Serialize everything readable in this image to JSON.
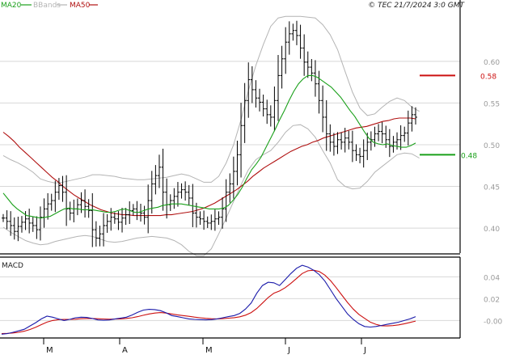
{
  "header": {
    "legend": [
      {
        "label": "MA20",
        "color": "#1aa01a"
      },
      {
        "label": "BBands",
        "color": "#b4b4b4"
      },
      {
        "label": "MA50",
        "color": "#b01010"
      }
    ],
    "copyright": "© TEC 21/7/2024 3:0 GMT"
  },
  "colors": {
    "price": "#000000",
    "ma20": "#1aa01a",
    "ma50": "#b01010",
    "bbands": "#b4b4b4",
    "macd": "#1a1aaa",
    "signal": "#cc1010",
    "resistance": "#cc1010",
    "support": "#1aa01a",
    "grid": "#d8d8d8",
    "axis_text": "#9a9a9a"
  },
  "chart_data": [
    {
      "type": "ohlc",
      "panel": "price",
      "y_ticks": [
        {
          "label": "0.40",
          "value": 0.4
        },
        {
          "label": "0.45",
          "value": 0.45
        },
        {
          "label": "0.50",
          "value": 0.5
        },
        {
          "label": "0.55",
          "value": 0.55
        },
        {
          "label": "0.60",
          "value": 0.6
        }
      ],
      "ylim": [
        0.37,
        0.66
      ],
      "x_ticks": [
        "M",
        "A",
        "M",
        "J",
        "J"
      ],
      "levels": [
        {
          "name": "resistance",
          "label": "0.58",
          "value": 0.583
        },
        {
          "name": "support",
          "label": "0.48",
          "value": 0.488
        }
      ],
      "price": [
        0.412,
        0.408,
        0.403,
        0.396,
        0.402,
        0.407,
        0.411,
        0.406,
        0.403,
        0.398,
        0.413,
        0.423,
        0.429,
        0.433,
        0.443,
        0.451,
        0.443,
        0.423,
        0.418,
        0.423,
        0.428,
        0.433,
        0.426,
        0.421,
        0.398,
        0.388,
        0.393,
        0.403,
        0.408,
        0.413,
        0.411,
        0.407,
        0.412,
        0.416,
        0.421,
        0.423,
        0.419,
        0.418,
        0.413,
        0.433,
        0.453,
        0.463,
        0.473,
        0.443,
        0.428,
        0.433,
        0.438,
        0.443,
        0.446,
        0.443,
        0.436,
        0.418,
        0.413,
        0.411,
        0.408,
        0.406,
        0.408,
        0.411,
        0.413,
        0.423,
        0.443,
        0.453,
        0.468,
        0.488,
        0.523,
        0.553,
        0.578,
        0.566,
        0.556,
        0.551,
        0.543,
        0.536,
        0.533,
        0.553,
        0.583,
        0.603,
        0.623,
        0.633,
        0.637,
        0.631,
        0.616,
        0.599,
        0.593,
        0.586,
        0.573,
        0.553,
        0.533,
        0.513,
        0.503,
        0.498,
        0.506,
        0.503,
        0.508,
        0.503,
        0.493,
        0.488,
        0.486,
        0.493,
        0.503,
        0.506,
        0.513,
        0.516,
        0.513,
        0.506,
        0.498,
        0.503,
        0.506,
        0.511,
        0.514,
        0.526,
        0.536,
        0.533
      ],
      "ma20": [
        0.442,
        0.435,
        0.428,
        0.423,
        0.419,
        0.415,
        0.414,
        0.413,
        0.412,
        0.413,
        0.414,
        0.417,
        0.42,
        0.423,
        0.424,
        0.423,
        0.423,
        0.422,
        0.422,
        0.422,
        0.421,
        0.42,
        0.419,
        0.419,
        0.42,
        0.422,
        0.423,
        0.421,
        0.419,
        0.419,
        0.421,
        0.423,
        0.424,
        0.425,
        0.427,
        0.428,
        0.429,
        0.429,
        0.429,
        0.428,
        0.427,
        0.426,
        0.425,
        0.424,
        0.423,
        0.423,
        0.423,
        0.424,
        0.427,
        0.433,
        0.44,
        0.449,
        0.46,
        0.47,
        0.477,
        0.485,
        0.496,
        0.507,
        0.518,
        0.53,
        0.541,
        0.553,
        0.564,
        0.573,
        0.579,
        0.583,
        0.583,
        0.581,
        0.577,
        0.573,
        0.569,
        0.563,
        0.557,
        0.549,
        0.541,
        0.534,
        0.525,
        0.516,
        0.508,
        0.503,
        0.501,
        0.5,
        0.501,
        0.499,
        0.498,
        0.497,
        0.497,
        0.499,
        0.502
      ],
      "ma20_start": 0,
      "ma50": [
        0.515,
        0.51,
        0.504,
        0.497,
        0.491,
        0.485,
        0.479,
        0.473,
        0.467,
        0.461,
        0.456,
        0.45,
        0.445,
        0.44,
        0.436,
        0.432,
        0.428,
        0.425,
        0.422,
        0.42,
        0.418,
        0.417,
        0.416,
        0.416,
        0.415,
        0.415,
        0.415,
        0.415,
        0.415,
        0.415,
        0.416,
        0.416,
        0.417,
        0.418,
        0.419,
        0.42,
        0.422,
        0.424,
        0.427,
        0.43,
        0.434,
        0.438,
        0.442,
        0.446,
        0.451,
        0.456,
        0.462,
        0.467,
        0.472,
        0.476,
        0.48,
        0.484,
        0.488,
        0.492,
        0.495,
        0.498,
        0.5,
        0.503,
        0.505,
        0.508,
        0.51,
        0.512,
        0.514,
        0.516,
        0.518,
        0.52,
        0.521,
        0.522,
        0.524,
        0.526,
        0.528,
        0.529,
        0.531,
        0.532,
        0.532,
        0.532,
        0.531
      ],
      "bb_upper": [
        0.487,
        0.482,
        0.478,
        0.473,
        0.467,
        0.459,
        0.456,
        0.454,
        0.455,
        0.457,
        0.459,
        0.461,
        0.464,
        0.464,
        0.463,
        0.462,
        0.46,
        0.459,
        0.458,
        0.458,
        0.459,
        0.46,
        0.461,
        0.463,
        0.465,
        0.463,
        0.459,
        0.455,
        0.455,
        0.462,
        0.478,
        0.5,
        0.53,
        0.565,
        0.595,
        0.62,
        0.642,
        0.652,
        0.654,
        0.654,
        0.654,
        0.653,
        0.652,
        0.644,
        0.632,
        0.614,
        0.588,
        0.563,
        0.544,
        0.535,
        0.537,
        0.545,
        0.552,
        0.556,
        0.553,
        0.545,
        0.54
      ],
      "bb_lower": [
        0.401,
        0.395,
        0.39,
        0.385,
        0.382,
        0.38,
        0.381,
        0.384,
        0.386,
        0.388,
        0.39,
        0.391,
        0.39,
        0.387,
        0.384,
        0.383,
        0.384,
        0.386,
        0.388,
        0.389,
        0.39,
        0.389,
        0.388,
        0.385,
        0.38,
        0.372,
        0.367,
        0.367,
        0.375,
        0.393,
        0.412,
        0.432,
        0.452,
        0.47,
        0.482,
        0.488,
        0.493,
        0.503,
        0.515,
        0.523,
        0.524,
        0.519,
        0.509,
        0.493,
        0.478,
        0.458,
        0.45,
        0.447,
        0.448,
        0.456,
        0.467,
        0.474,
        0.481,
        0.488,
        0.49,
        0.489,
        0.484
      ],
      "bb_step": 2,
      "bb_start": 0
    },
    {
      "type": "line",
      "panel": "macd",
      "title": "MACD",
      "y_ticks": [
        {
          "label": "0.04",
          "value": 0.04
        },
        {
          "label": "0.02",
          "value": 0.02
        },
        {
          "label": "-0.00",
          "value": 0.0
        }
      ],
      "ylim": [
        -0.016,
        0.058
      ],
      "macd": [
        -0.0125,
        -0.012,
        -0.0108,
        -0.0095,
        -0.008,
        -0.005,
        -0.002,
        0.0015,
        0.004,
        0.003,
        0.0015,
        0.0,
        0.001,
        0.0025,
        0.003,
        0.0028,
        0.0018,
        0.0005,
        0.0002,
        0.0005,
        0.0015,
        0.0022,
        0.003,
        0.005,
        0.0075,
        0.0095,
        0.0102,
        0.01,
        0.009,
        0.007,
        0.0045,
        0.0035,
        0.0025,
        0.0015,
        0.001,
        0.0008,
        0.0006,
        0.0008,
        0.0015,
        0.0025,
        0.0035,
        0.0045,
        0.0065,
        0.0105,
        0.016,
        0.025,
        0.032,
        0.035,
        0.0345,
        0.032,
        0.0375,
        0.043,
        0.0478,
        0.0505,
        0.049,
        0.046,
        0.042,
        0.036,
        0.028,
        0.02,
        0.013,
        0.006,
        0.001,
        -0.003,
        -0.0055,
        -0.006,
        -0.0055,
        -0.0045,
        -0.0035,
        -0.0025,
        -0.0015,
        0.0,
        0.0015,
        0.0035
      ],
      "signal": [
        -0.012,
        -0.0118,
        -0.0114,
        -0.0108,
        -0.0098,
        -0.0082,
        -0.0062,
        -0.0038,
        -0.0015,
        0.0,
        0.0008,
        0.001,
        0.001,
        0.0012,
        0.0016,
        0.0018,
        0.0018,
        0.0016,
        0.0014,
        0.0012,
        0.0013,
        0.0015,
        0.0019,
        0.0025,
        0.0035,
        0.0048,
        0.006,
        0.0068,
        0.0072,
        0.0068,
        0.006,
        0.0052,
        0.0045,
        0.0038,
        0.0031,
        0.0025,
        0.002,
        0.0016,
        0.0015,
        0.0017,
        0.0021,
        0.0026,
        0.0034,
        0.0049,
        0.0072,
        0.011,
        0.016,
        0.021,
        0.025,
        0.027,
        0.03,
        0.034,
        0.0385,
        0.043,
        0.0455,
        0.046,
        0.0448,
        0.0415,
        0.0365,
        0.03,
        0.0232,
        0.0165,
        0.0105,
        0.0055,
        0.002,
        -0.0015,
        -0.0035,
        -0.0048,
        -0.005,
        -0.0047,
        -0.004,
        -0.003,
        -0.0018,
        -0.0005
      ]
    }
  ]
}
